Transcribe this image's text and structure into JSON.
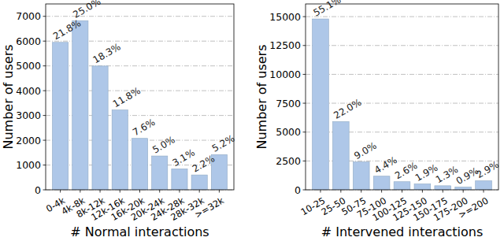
{
  "chart_data": [
    {
      "type": "bar",
      "x_label": "# Normal interactions",
      "y_label": "Number of users",
      "categories": [
        "0-4k",
        "4k-8k",
        "8k-12k",
        "12k-16k",
        "16k-20k",
        "20k-24k",
        "24k-28k",
        "28k-32k",
        ">=32k"
      ],
      "values": [
        5950,
        6825,
        4995,
        3220,
        2075,
        1365,
        845,
        600,
        1420
      ],
      "annotations": [
        "21.8%",
        "25.0%",
        "18.3%",
        "11.8%",
        "7.6%",
        "5.0%",
        "3.1%",
        "2.2%",
        "5.2%"
      ],
      "color": "#aec7e8",
      "ylim": [
        0,
        7500
      ],
      "yticks": [
        0,
        1000,
        2000,
        3000,
        4000,
        5000,
        6000,
        7000
      ],
      "grid": true
    },
    {
      "type": "bar",
      "x_label": "# Intervened interactions",
      "y_label": "Number of users",
      "categories": [
        "10-25",
        "25-50",
        "50-75",
        "75-100",
        "100-125",
        "125-150",
        "150-175",
        "175-200",
        ">=200"
      ],
      "values": [
        14800,
        5910,
        2420,
        1180,
        700,
        510,
        350,
        240,
        780
      ],
      "annotations": [
        "55.1%",
        "22.0%",
        "9.0%",
        "4.4%",
        "2.6%",
        "1.9%",
        "1.3%",
        "0.9%",
        "2.9%"
      ],
      "color": "#aec7e8",
      "ylim": [
        0,
        16100
      ],
      "yticks": [
        0,
        2500,
        5000,
        7500,
        10000,
        12500,
        15000
      ],
      "grid": true
    }
  ]
}
